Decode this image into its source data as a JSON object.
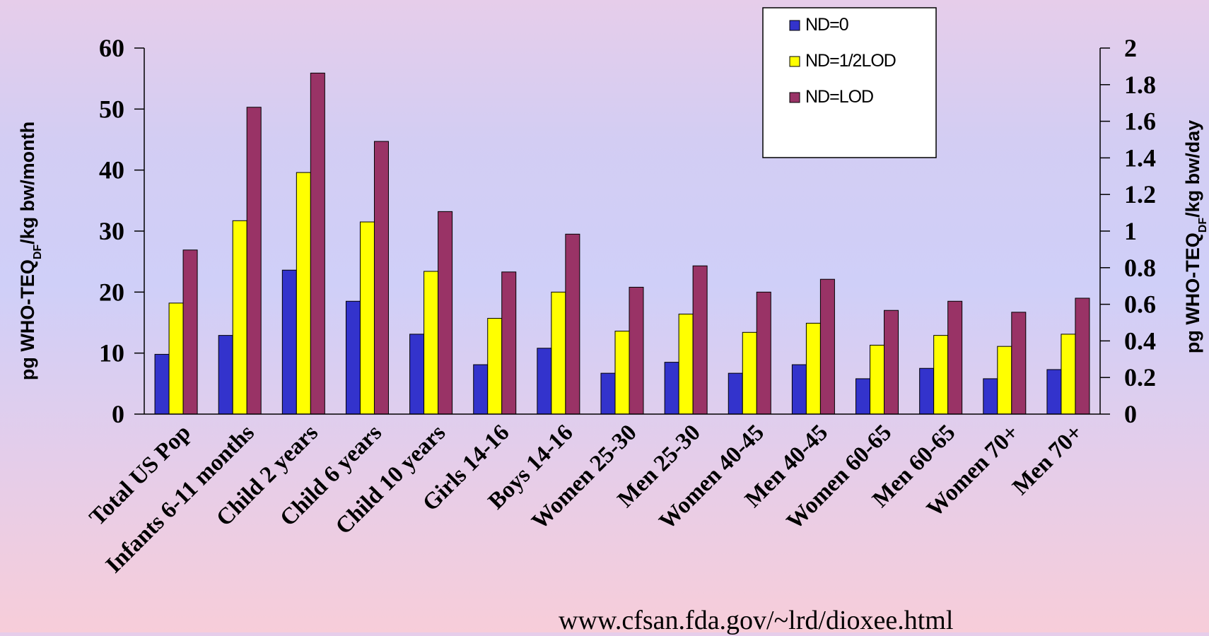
{
  "chart_data": {
    "type": "bar",
    "categories": [
      "Total US Pop",
      "Infants 6-11 months",
      "Child 2 years",
      "Child 6 years",
      "Child 10 years",
      "Girls 14-16",
      "Boys 14-16",
      "Women 25-30",
      "Men 25-30",
      "Women 40-45",
      "Men 40-45",
      "Women 60-65",
      "Men 60-65",
      "Women 70+",
      "Men 70+"
    ],
    "series": [
      {
        "name": "ND=0",
        "color": "#3333cc",
        "values": [
          9.8,
          12.9,
          23.6,
          18.5,
          13.1,
          8.1,
          10.8,
          6.7,
          8.5,
          6.7,
          8.1,
          5.8,
          7.5,
          5.8,
          7.3
        ]
      },
      {
        "name": "ND=1/2LOD",
        "color": "#ffff00",
        "values": [
          18.2,
          31.7,
          39.6,
          31.5,
          23.4,
          15.7,
          20.0,
          13.6,
          16.4,
          13.4,
          14.9,
          11.3,
          12.9,
          11.1,
          13.1
        ]
      },
      {
        "name": "ND=LOD",
        "color": "#993366",
        "values": [
          26.9,
          50.3,
          55.9,
          44.7,
          33.2,
          23.3,
          29.5,
          20.8,
          24.3,
          20.0,
          22.1,
          17.0,
          18.5,
          16.7,
          19.0
        ]
      }
    ],
    "ylabel": "pg WHO-TEQDF/kg bw/month",
    "ylabel_main": "pg WHO-TEQ",
    "ylabel_sub": "DF",
    "ylabel_end": "/kg bw/month",
    "ylim": [
      0,
      60
    ],
    "yticks": [
      "0",
      "10",
      "20",
      "30",
      "40",
      "50",
      "60"
    ],
    "y2label": "pg WHO-TEQDF/kg bw/day",
    "y2label_main": "pg WHO-TEQ",
    "y2label_sub": "DF",
    "y2label_end": "/kg bw/day",
    "y2lim": [
      0,
      2
    ],
    "y2ticks": [
      "0",
      "0.2",
      "0.4",
      "0.6",
      "0.8",
      "1",
      "1.2",
      "1.4",
      "1.6",
      "1.8",
      "2"
    ],
    "legend_position": "top-right"
  },
  "source_text": "www.cfsan.fda.gov/~lrd/dioxee.html"
}
